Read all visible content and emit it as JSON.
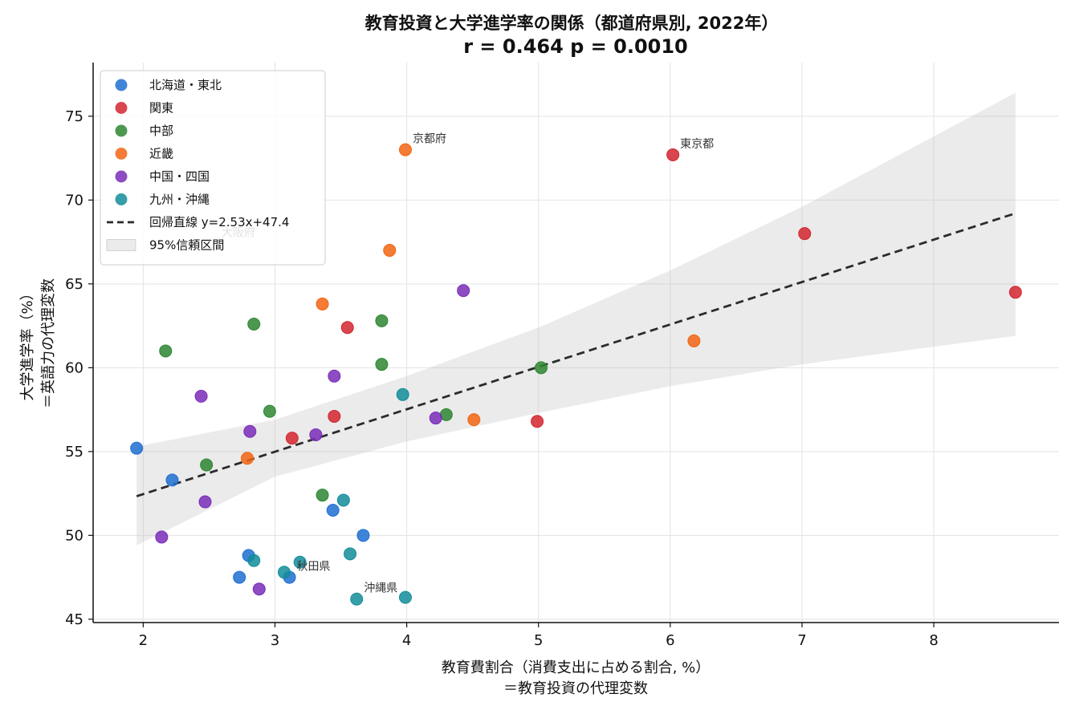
{
  "chart_data": {
    "type": "scatter",
    "title": "教育投資と大学進学率の関係（都道府県別, 2022年）",
    "subtitle": "r = 0.464  p = 0.0010",
    "xlabel": "教育費割合（消費支出に占める割合, %）",
    "xlabel2": "＝教育投資の代理変数",
    "ylabel": "大学進学率（%）",
    "ylabel2": "＝英語力の代理変数",
    "xlim": [
      1.62,
      8.95
    ],
    "ylim": [
      44.8,
      78.2
    ],
    "xticks": [
      2,
      3,
      4,
      5,
      6,
      7,
      8
    ],
    "yticks": [
      45,
      50,
      55,
      60,
      65,
      70,
      75
    ],
    "grid": true,
    "legend_position": "top-left",
    "series": [
      {
        "name": "北海道・東北",
        "color": "#1f6fd1",
        "points": [
          [
            1.95,
            55.2
          ],
          [
            2.22,
            53.3
          ],
          [
            2.73,
            47.5
          ],
          [
            2.8,
            48.8
          ],
          [
            3.11,
            47.5
          ],
          [
            3.44,
            51.5
          ],
          [
            3.67,
            50.0
          ]
        ]
      },
      {
        "name": "関東",
        "color": "#d3262f",
        "points": [
          [
            3.13,
            55.8
          ],
          [
            3.45,
            57.1
          ],
          [
            3.55,
            62.4
          ],
          [
            4.99,
            56.8
          ],
          [
            6.02,
            72.7
          ],
          [
            7.02,
            68.0
          ],
          [
            8.62,
            64.5
          ]
        ]
      },
      {
        "name": "中部",
        "color": "#2e8632",
        "points": [
          [
            2.17,
            61.0
          ],
          [
            2.48,
            54.2
          ],
          [
            2.84,
            62.6
          ],
          [
            2.96,
            57.4
          ],
          [
            3.36,
            52.4
          ],
          [
            3.81,
            62.8
          ],
          [
            3.81,
            60.2
          ],
          [
            4.3,
            57.2
          ],
          [
            5.02,
            60.0
          ]
        ]
      },
      {
        "name": "近畿",
        "color": "#f26513",
        "points": [
          [
            2.79,
            54.6
          ],
          [
            3.36,
            63.8
          ],
          [
            3.87,
            67.0
          ],
          [
            3.99,
            73.0
          ],
          [
            4.51,
            56.9
          ],
          [
            6.18,
            61.6
          ]
        ]
      },
      {
        "name": "中国・四国",
        "color": "#7a2db8",
        "points": [
          [
            2.14,
            49.9
          ],
          [
            2.44,
            58.3
          ],
          [
            2.47,
            52.0
          ],
          [
            2.81,
            56.2
          ],
          [
            2.88,
            46.8
          ],
          [
            3.31,
            56.0
          ],
          [
            3.45,
            59.5
          ],
          [
            4.22,
            57.0
          ],
          [
            4.43,
            64.6
          ]
        ]
      },
      {
        "name": "九州・沖縄",
        "color": "#138d9a",
        "points": [
          [
            2.84,
            48.5
          ],
          [
            3.07,
            47.8
          ],
          [
            3.19,
            48.4
          ],
          [
            3.52,
            52.1
          ],
          [
            3.57,
            48.9
          ],
          [
            3.62,
            46.2
          ],
          [
            3.97,
            58.4
          ],
          [
            3.99,
            46.3
          ]
        ]
      }
    ],
    "regression": {
      "label": "回帰直線 y=2.53x+47.4",
      "slope": 2.53,
      "intercept": 47.4,
      "x_range": [
        1.95,
        8.62
      ]
    },
    "confidence_band": {
      "label": "95%信頼区間",
      "upper": [
        [
          1.95,
          55.3
        ],
        [
          3.0,
          56.9
        ],
        [
          4.0,
          59.5
        ],
        [
          5.0,
          62.4
        ],
        [
          6.0,
          65.8
        ],
        [
          7.0,
          69.6
        ],
        [
          8.62,
          76.4
        ]
      ],
      "lower": [
        [
          1.95,
          49.4
        ],
        [
          3.0,
          53.5
        ],
        [
          4.0,
          55.6
        ],
        [
          5.0,
          57.3
        ],
        [
          6.0,
          58.9
        ],
        [
          7.0,
          60.2
        ],
        [
          8.62,
          61.9
        ]
      ]
    },
    "annotations": [
      {
        "text": "京都府",
        "x": 3.99,
        "y": 73.0
      },
      {
        "text": "東京都",
        "x": 6.02,
        "y": 72.7
      },
      {
        "text": "大阪府",
        "x": 2.54,
        "y": 67.4
      },
      {
        "text": "秋田県",
        "x": 3.11,
        "y": 47.5
      },
      {
        "text": "沖縄県",
        "x": 3.62,
        "y": 46.2
      }
    ]
  }
}
